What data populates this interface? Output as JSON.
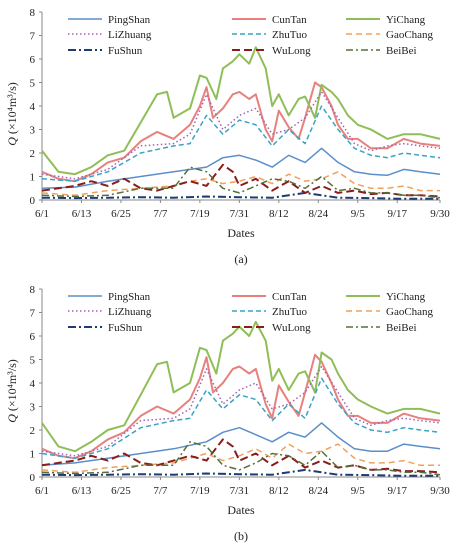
{
  "chart_data": [
    {
      "type": "line",
      "panel_label": "(a)",
      "xlabel": "Dates",
      "ylabel_main": "Q",
      "ylabel_unit": "(×10⁴m³/s)",
      "ylim": [
        0,
        8
      ],
      "yticks": [
        "0",
        "1",
        "2",
        "3",
        "4",
        "5",
        "6",
        "7",
        "8"
      ],
      "xtick_labels": [
        "6/1",
        "6/13",
        "6/25",
        "7/7",
        "7/19",
        "7/31",
        "8/12",
        "8/24",
        "9/5",
        "9/17",
        "9/30"
      ],
      "xtick_days": [
        0,
        12,
        24,
        36,
        48,
        60,
        72,
        84,
        96,
        108,
        121
      ],
      "grid": false,
      "legend_position": "top",
      "series": [
        {
          "name": "PingShan",
          "color": "#5b8fc9",
          "dash": "",
          "width": 1.5,
          "x": [
            0,
            10,
            20,
            30,
            40,
            50,
            55,
            60,
            65,
            70,
            75,
            80,
            85,
            90,
            95,
            100,
            105,
            110,
            115,
            121
          ],
          "values": [
            0.5,
            0.55,
            0.8,
            1.0,
            1.2,
            1.4,
            1.8,
            1.9,
            1.7,
            1.4,
            1.9,
            1.6,
            2.2,
            1.6,
            1.2,
            1.1,
            1.05,
            1.3,
            1.2,
            1.1
          ]
        },
        {
          "name": "CunTan",
          "color": "#e6817d",
          "dash": "",
          "width": 2,
          "x": [
            0,
            5,
            10,
            15,
            20,
            25,
            30,
            35,
            40,
            45,
            48,
            50,
            52,
            55,
            58,
            60,
            63,
            65,
            68,
            70,
            72,
            75,
            78,
            80,
            83,
            85,
            88,
            90,
            93,
            96,
            100,
            105,
            110,
            115,
            121
          ],
          "values": [
            1.2,
            0.9,
            0.8,
            1.1,
            1.6,
            1.8,
            2.5,
            2.9,
            2.6,
            3.2,
            4.0,
            4.8,
            3.5,
            3.9,
            4.5,
            4.6,
            4.3,
            4.5,
            3.0,
            2.5,
            3.8,
            3.1,
            2.6,
            3.5,
            5.0,
            4.8,
            4.0,
            3.2,
            2.6,
            2.6,
            2.2,
            2.2,
            2.6,
            2.4,
            2.3
          ]
        },
        {
          "name": "YiChang",
          "color": "#8fbe57",
          "dash": "",
          "width": 2,
          "x": [
            0,
            5,
            10,
            15,
            20,
            25,
            30,
            35,
            38,
            40,
            45,
            48,
            50,
            53,
            55,
            58,
            60,
            63,
            65,
            68,
            70,
            72,
            75,
            78,
            80,
            83,
            85,
            88,
            90,
            93,
            96,
            100,
            105,
            110,
            115,
            121
          ],
          "values": [
            2.1,
            1.2,
            1.1,
            1.4,
            1.9,
            2.1,
            3.3,
            4.5,
            4.6,
            3.5,
            3.9,
            5.3,
            5.2,
            4.3,
            5.6,
            5.9,
            6.2,
            5.8,
            6.5,
            5.6,
            4.0,
            4.5,
            3.6,
            4.3,
            4.4,
            3.5,
            4.9,
            4.6,
            4.3,
            3.6,
            3.2,
            3.0,
            2.6,
            2.8,
            2.8,
            2.6
          ]
        },
        {
          "name": "LiZhuang",
          "color": "#a661b0",
          "dash": "1.5,2.5",
          "width": 1.5,
          "x": [
            0,
            10,
            20,
            30,
            40,
            45,
            50,
            55,
            60,
            65,
            70,
            75,
            80,
            85,
            90,
            95,
            100,
            105,
            110,
            115,
            121
          ],
          "values": [
            1.1,
            0.9,
            1.3,
            2.3,
            2.4,
            2.8,
            4.5,
            3.0,
            3.6,
            3.9,
            2.8,
            3.0,
            3.5,
            4.6,
            3.5,
            2.4,
            2.1,
            2.3,
            2.4,
            2.3,
            2.2
          ]
        },
        {
          "name": "ZhuTuo",
          "color": "#3aa3c6",
          "dash": "5,3",
          "width": 1.5,
          "x": [
            0,
            10,
            20,
            30,
            40,
            45,
            50,
            55,
            60,
            65,
            70,
            75,
            80,
            85,
            90,
            95,
            100,
            105,
            110,
            115,
            121
          ],
          "values": [
            0.9,
            0.8,
            1.2,
            2.0,
            2.3,
            2.4,
            3.6,
            2.8,
            3.4,
            3.2,
            2.3,
            3.0,
            2.4,
            4.0,
            3.0,
            2.2,
            1.9,
            1.8,
            2.0,
            1.9,
            1.8
          ]
        },
        {
          "name": "GaoChang",
          "color": "#f0a05a",
          "dash": "6,4",
          "width": 1.5,
          "x": [
            0,
            10,
            20,
            30,
            40,
            45,
            50,
            55,
            60,
            65,
            70,
            75,
            80,
            85,
            90,
            95,
            100,
            105,
            110,
            115,
            121
          ],
          "values": [
            0.3,
            0.2,
            0.4,
            0.5,
            0.6,
            0.8,
            0.9,
            0.7,
            0.8,
            1.0,
            0.7,
            1.1,
            0.8,
            0.9,
            1.2,
            0.7,
            0.5,
            0.5,
            0.6,
            0.4,
            0.4
          ]
        },
        {
          "name": "FuShun",
          "color": "#1f3b73",
          "dash": "8,3,2,3",
          "width": 2,
          "x": [
            0,
            10,
            20,
            30,
            40,
            50,
            60,
            70,
            80,
            90,
            100,
            110,
            121
          ],
          "values": [
            0.1,
            0.08,
            0.1,
            0.12,
            0.1,
            0.15,
            0.12,
            0.1,
            0.3,
            0.1,
            0.08,
            0.05,
            0.05
          ]
        },
        {
          "name": "WuLong",
          "color": "#8b1c1c",
          "dash": "8,4",
          "width": 2,
          "x": [
            0,
            5,
            10,
            15,
            20,
            25,
            30,
            35,
            40,
            45,
            50,
            55,
            58,
            60,
            65,
            70,
            75,
            80,
            85,
            90,
            95,
            100,
            105,
            110,
            115,
            121
          ],
          "values": [
            0.4,
            0.5,
            0.6,
            0.8,
            0.6,
            0.9,
            0.5,
            0.4,
            0.6,
            0.8,
            0.6,
            1.5,
            1.2,
            0.6,
            0.9,
            0.4,
            0.8,
            0.3,
            0.6,
            0.3,
            0.4,
            0.25,
            0.3,
            0.2,
            0.2,
            0.15
          ]
        },
        {
          "name": "BeiBei",
          "color": "#55703a",
          "dash": "7,3,2,3",
          "width": 1.5,
          "x": [
            0,
            10,
            20,
            30,
            40,
            45,
            50,
            55,
            60,
            65,
            70,
            75,
            80,
            85,
            90,
            95,
            100,
            105,
            110,
            115,
            121
          ],
          "values": [
            0.2,
            0.15,
            0.2,
            0.5,
            0.5,
            1.4,
            1.2,
            0.5,
            0.3,
            0.6,
            0.9,
            0.8,
            0.5,
            1.0,
            0.4,
            0.5,
            0.3,
            0.3,
            0.2,
            0.2,
            0.1
          ]
        }
      ]
    },
    {
      "type": "line",
      "panel_label": "(b)",
      "xlabel": "Dates",
      "ylabel_main": "Q",
      "ylabel_unit": "(×10⁴m³/s)",
      "ylim": [
        0,
        8
      ],
      "yticks": [
        "0",
        "1",
        "2",
        "3",
        "4",
        "5",
        "6",
        "7",
        "8"
      ],
      "xtick_labels": [
        "6/1",
        "6/13",
        "6/25",
        "7/7",
        "7/19",
        "7/31",
        "8/12",
        "8/24",
        "9/5",
        "9/17",
        "9/30"
      ],
      "xtick_days": [
        0,
        12,
        24,
        36,
        48,
        60,
        72,
        84,
        96,
        108,
        121
      ],
      "grid": false,
      "legend_position": "top",
      "series": [
        {
          "name": "PingShan",
          "color": "#5b8fc9",
          "dash": "",
          "width": 1.5,
          "x": [
            0,
            10,
            20,
            30,
            40,
            50,
            55,
            60,
            65,
            70,
            75,
            80,
            85,
            90,
            95,
            100,
            105,
            110,
            115,
            121
          ],
          "values": [
            0.5,
            0.6,
            0.8,
            1.0,
            1.2,
            1.5,
            1.9,
            2.1,
            1.8,
            1.5,
            1.9,
            1.7,
            2.3,
            1.7,
            1.2,
            1.1,
            1.1,
            1.4,
            1.3,
            1.2
          ]
        },
        {
          "name": "CunTan",
          "color": "#e6817d",
          "dash": "",
          "width": 2,
          "x": [
            0,
            5,
            10,
            15,
            20,
            25,
            30,
            35,
            40,
            45,
            48,
            50,
            52,
            55,
            58,
            60,
            63,
            65,
            68,
            70,
            72,
            75,
            78,
            80,
            83,
            85,
            88,
            90,
            93,
            96,
            100,
            105,
            110,
            115,
            121
          ],
          "values": [
            1.2,
            0.9,
            0.8,
            1.1,
            1.6,
            1.9,
            2.6,
            3.0,
            2.7,
            3.3,
            4.2,
            5.1,
            3.6,
            4.0,
            4.6,
            4.7,
            4.4,
            4.6,
            3.1,
            2.5,
            3.9,
            3.2,
            2.6,
            3.6,
            5.2,
            4.9,
            4.0,
            3.3,
            2.6,
            2.6,
            2.3,
            2.3,
            2.7,
            2.5,
            2.4
          ]
        },
        {
          "name": "YiChang",
          "color": "#8fbe57",
          "dash": "",
          "width": 2,
          "x": [
            0,
            5,
            10,
            15,
            20,
            25,
            30,
            35,
            38,
            40,
            45,
            48,
            50,
            53,
            55,
            58,
            60,
            63,
            65,
            68,
            70,
            72,
            75,
            78,
            80,
            83,
            85,
            88,
            90,
            93,
            96,
            100,
            105,
            110,
            115,
            121
          ],
          "values": [
            2.3,
            1.3,
            1.1,
            1.5,
            2.0,
            2.2,
            3.5,
            4.8,
            4.9,
            3.6,
            4.0,
            5.5,
            5.4,
            4.4,
            5.8,
            6.1,
            6.4,
            6.0,
            6.6,
            5.8,
            4.1,
            4.6,
            3.7,
            4.4,
            4.5,
            3.6,
            5.3,
            5.0,
            4.4,
            3.7,
            3.3,
            3.0,
            2.7,
            2.9,
            2.9,
            2.7
          ]
        },
        {
          "name": "LiZhuang",
          "color": "#a661b0",
          "dash": "1.5,2.5",
          "width": 1.5,
          "x": [
            0,
            10,
            20,
            30,
            40,
            45,
            50,
            55,
            60,
            65,
            70,
            75,
            80,
            85,
            90,
            95,
            100,
            105,
            110,
            115,
            121
          ],
          "values": [
            1.1,
            0.9,
            1.3,
            2.4,
            2.5,
            2.9,
            4.6,
            3.1,
            3.7,
            4.0,
            2.9,
            3.1,
            3.6,
            4.7,
            3.6,
            2.5,
            2.2,
            2.4,
            2.5,
            2.4,
            2.3
          ]
        },
        {
          "name": "ZhuTuo",
          "color": "#3aa3c6",
          "dash": "5,3",
          "width": 1.5,
          "x": [
            0,
            10,
            20,
            30,
            40,
            45,
            50,
            55,
            60,
            65,
            70,
            75,
            80,
            85,
            90,
            95,
            100,
            105,
            110,
            115,
            121
          ],
          "values": [
            1.0,
            0.8,
            1.2,
            2.1,
            2.4,
            2.5,
            3.7,
            2.9,
            3.5,
            3.3,
            2.4,
            3.1,
            2.5,
            4.2,
            3.1,
            2.3,
            2.0,
            1.9,
            2.1,
            2.0,
            1.9
          ]
        },
        {
          "name": "GaoChang",
          "color": "#f0a05a",
          "dash": "6,4",
          "width": 1.5,
          "x": [
            0,
            10,
            20,
            30,
            40,
            45,
            50,
            55,
            60,
            65,
            70,
            75,
            80,
            85,
            90,
            95,
            100,
            105,
            110,
            115,
            121
          ],
          "values": [
            0.3,
            0.2,
            0.4,
            0.5,
            0.6,
            0.8,
            1.0,
            0.7,
            0.9,
            1.2,
            0.8,
            1.4,
            1.0,
            1.1,
            1.4,
            0.8,
            0.6,
            0.6,
            0.7,
            0.5,
            0.5
          ]
        },
        {
          "name": "FuShun",
          "color": "#1f3b73",
          "dash": "8,3,2,3",
          "width": 2,
          "x": [
            0,
            10,
            20,
            30,
            40,
            50,
            60,
            70,
            80,
            90,
            100,
            110,
            121
          ],
          "values": [
            0.1,
            0.08,
            0.1,
            0.12,
            0.1,
            0.15,
            0.12,
            0.1,
            0.3,
            0.1,
            0.08,
            0.05,
            0.05
          ]
        },
        {
          "name": "WuLong",
          "color": "#8b1c1c",
          "dash": "8,4",
          "width": 2,
          "x": [
            0,
            5,
            10,
            15,
            20,
            25,
            30,
            35,
            40,
            45,
            50,
            55,
            58,
            60,
            65,
            70,
            75,
            80,
            85,
            90,
            95,
            100,
            105,
            110,
            115,
            121
          ],
          "values": [
            0.5,
            0.6,
            0.7,
            0.9,
            0.7,
            1.0,
            0.6,
            0.5,
            0.7,
            0.9,
            0.7,
            1.6,
            1.3,
            0.7,
            1.0,
            0.5,
            0.9,
            0.4,
            0.7,
            0.4,
            0.5,
            0.3,
            0.35,
            0.25,
            0.25,
            0.2
          ]
        },
        {
          "name": "BeiBei",
          "color": "#55703a",
          "dash": "7,3,2,3",
          "width": 1.5,
          "x": [
            0,
            10,
            20,
            30,
            40,
            45,
            50,
            55,
            60,
            65,
            70,
            75,
            80,
            85,
            90,
            95,
            100,
            105,
            110,
            115,
            121
          ],
          "values": [
            0.2,
            0.15,
            0.2,
            0.5,
            0.5,
            1.5,
            1.3,
            0.5,
            0.3,
            0.6,
            1.0,
            0.9,
            0.5,
            1.1,
            0.4,
            0.5,
            0.3,
            0.3,
            0.2,
            0.2,
            0.1
          ]
        }
      ]
    }
  ]
}
